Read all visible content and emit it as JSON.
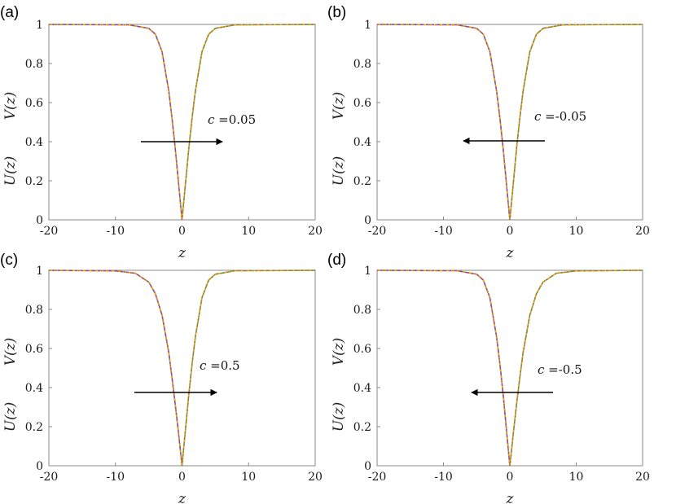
{
  "colors": {
    "u_line": "#5b4fc4",
    "u_dashed": "#e8b100",
    "v_line": "#4f9a4f",
    "v_dotted": "#d6503a",
    "axes": "#888888",
    "arrow": "#000000"
  },
  "chart_data": [
    {
      "panel_label": "(a)",
      "type": "line",
      "xlabel": "z",
      "ylabel_u": "U(z)",
      "ylabel_v": "V(z)",
      "xlim": [
        -20,
        20
      ],
      "ylim": [
        0,
        1
      ],
      "xticks": [
        "-20",
        "-10",
        "0",
        "10",
        "20"
      ],
      "yticks": [
        "0",
        "0.2",
        "0.4",
        "0.6",
        "0.8",
        "1"
      ],
      "annotation": {
        "prefix": "c",
        "value": "=0.05"
      },
      "arrow_direction": "right",
      "series": [
        {
          "x": [
            -20,
            -8,
            -5,
            -4,
            -3,
            -2,
            -1.5,
            -1,
            -0.5,
            0,
            0.5,
            1,
            1.5,
            2,
            3,
            4,
            5,
            8,
            20
          ],
          "y": [
            1,
            0.998,
            0.98,
            0.95,
            0.86,
            0.66,
            0.52,
            0.36,
            0.18,
            0,
            0.18,
            0.36,
            0.52,
            0.66,
            0.86,
            0.95,
            0.98,
            0.998,
            1
          ]
        }
      ]
    },
    {
      "panel_label": "(b)",
      "type": "line",
      "xlabel": "z",
      "ylabel_u": "U(z)",
      "ylabel_v": "V(z)",
      "xlim": [
        -20,
        20
      ],
      "ylim": [
        0,
        1
      ],
      "xticks": [
        "-20",
        "-10",
        "0",
        "10",
        "20"
      ],
      "yticks": [
        "0",
        "0.2",
        "0.4",
        "0.6",
        "0.8",
        "1"
      ],
      "annotation": {
        "prefix": "c",
        "value": "=-0.05"
      },
      "arrow_direction": "left",
      "series": [
        {
          "x": [
            -20,
            -8,
            -5,
            -4,
            -3,
            -2,
            -1.5,
            -1,
            -0.5,
            0,
            0.5,
            1,
            1.5,
            2,
            3,
            4,
            5,
            8,
            20
          ],
          "y": [
            1,
            0.998,
            0.98,
            0.95,
            0.86,
            0.66,
            0.52,
            0.36,
            0.18,
            0,
            0.18,
            0.36,
            0.52,
            0.66,
            0.86,
            0.95,
            0.98,
            0.998,
            1
          ]
        }
      ]
    },
    {
      "panel_label": "(c)",
      "type": "line",
      "xlabel": "z",
      "ylabel_u": "U(z)",
      "ylabel_v": "V(z)",
      "xlim": [
        -20,
        20
      ],
      "ylim": [
        0,
        1
      ],
      "xticks": [
        "-20",
        "-10",
        "0",
        "10",
        "20"
      ],
      "yticks": [
        "0",
        "0.2",
        "0.4",
        "0.6",
        "0.8",
        "1"
      ],
      "annotation": {
        "prefix": "c",
        "value": "=0.5"
      },
      "arrow_direction": "right",
      "series": [
        {
          "x": [
            -20,
            -10,
            -7,
            -5,
            -4,
            -3,
            -2,
            -1.5,
            -1,
            -0.5,
            0,
            0.5,
            1,
            1.5,
            2,
            3,
            4,
            5,
            8,
            20
          ],
          "y": [
            1,
            0.997,
            0.985,
            0.94,
            0.88,
            0.77,
            0.58,
            0.45,
            0.31,
            0.16,
            0,
            0.18,
            0.36,
            0.52,
            0.66,
            0.86,
            0.95,
            0.98,
            0.998,
            1
          ]
        }
      ]
    },
    {
      "panel_label": "(d)",
      "type": "line",
      "xlabel": "z",
      "ylabel_u": "U(z)",
      "ylabel_v": "V(z)",
      "xlim": [
        -20,
        20
      ],
      "ylim": [
        0,
        1
      ],
      "xticks": [
        "-20",
        "-10",
        "0",
        "10",
        "20"
      ],
      "yticks": [
        "0",
        "0.2",
        "0.4",
        "0.6",
        "0.8",
        "1"
      ],
      "annotation": {
        "prefix": "c",
        "value": "=-0.5"
      },
      "arrow_direction": "left",
      "series": [
        {
          "x": [
            -20,
            -8,
            -5,
            -4,
            -3,
            -2,
            -1.5,
            -1,
            -0.5,
            0,
            0.5,
            1,
            1.5,
            2,
            3,
            4,
            5,
            7,
            10,
            20
          ],
          "y": [
            1,
            0.998,
            0.98,
            0.95,
            0.86,
            0.66,
            0.52,
            0.36,
            0.18,
            0,
            0.16,
            0.31,
            0.45,
            0.58,
            0.77,
            0.88,
            0.94,
            0.985,
            0.997,
            1
          ]
        }
      ]
    }
  ]
}
